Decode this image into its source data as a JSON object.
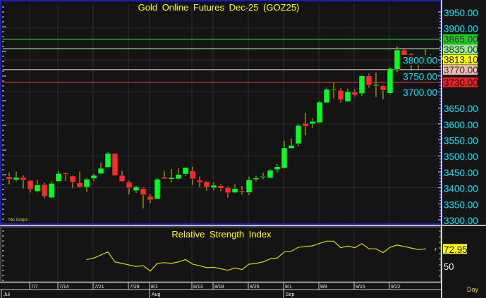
{
  "chart_data": {
    "type": "candlestick",
    "title": "Gold Online Futures Dec-25 (GOZ25)",
    "note": "No Gaps",
    "period_label": "Day",
    "price_axis": {
      "ylim": [
        3300,
        3950
      ],
      "ticks": [
        3300,
        3350,
        3400,
        3450,
        3500,
        3550,
        3600,
        3650,
        3700,
        3750,
        3800,
        3900,
        3950
      ],
      "tick_labels": [
        "3300.00",
        "3350.00",
        "3400.00",
        "3450.00",
        "3500.00",
        "3550.00",
        "3600.00",
        "3650.00",
        "3700.00",
        "3750.00",
        "3800.00",
        "3900.00",
        "3950.00"
      ]
    },
    "grid": true,
    "candles": [
      [
        3435,
        3448,
        3411,
        3426
      ],
      [
        3425,
        3451,
        3420,
        3433
      ],
      [
        3433,
        3439,
        3398,
        3424
      ],
      [
        3423,
        3425,
        3385,
        3395
      ],
      [
        3389,
        3425,
        3385,
        3409
      ],
      [
        3411,
        3415,
        3367,
        3373
      ],
      [
        3369,
        3420,
        3367,
        3414
      ],
      [
        3420,
        3453,
        3420,
        3445
      ],
      [
        3446,
        3448,
        3422,
        3442
      ],
      [
        3437,
        3439,
        3400,
        3417
      ],
      [
        3416,
        3451,
        3400,
        3403
      ],
      [
        3402,
        3431,
        3387,
        3427
      ],
      [
        3429,
        3444,
        3422,
        3439
      ],
      [
        3444,
        3479,
        3444,
        3461
      ],
      [
        3464,
        3512,
        3464,
        3508
      ],
      [
        3508,
        3508,
        3438,
        3438
      ],
      [
        3439,
        3453,
        3418,
        3420
      ],
      [
        3418,
        3422,
        3380,
        3400
      ],
      [
        3391,
        3406,
        3384,
        3403
      ],
      [
        3398,
        3402,
        3336,
        3378
      ],
      [
        3374,
        3380,
        3352,
        3362
      ],
      [
        3365,
        3431,
        3365,
        3427
      ],
      [
        3434,
        3453,
        3428,
        3428
      ],
      [
        3427,
        3459,
        3417,
        3432
      ],
      [
        3428,
        3461,
        3425,
        3442
      ],
      [
        3443,
        3464,
        3437,
        3464
      ],
      [
        3453,
        3466,
        3409,
        3428
      ],
      [
        3424,
        3435,
        3403,
        3417
      ],
      [
        3420,
        3422,
        3391,
        3402
      ],
      [
        3400,
        3417,
        3392,
        3408
      ],
      [
        3407,
        3411,
        3389,
        3398
      ],
      [
        3401,
        3405,
        3369,
        3384
      ],
      [
        3385,
        3411,
        3383,
        3398
      ],
      [
        3391,
        3406,
        3379,
        3387
      ],
      [
        3385,
        3435,
        3378,
        3425
      ],
      [
        3426,
        3438,
        3420,
        3431
      ],
      [
        3433,
        3447,
        3427,
        3436
      ],
      [
        3431,
        3458,
        3430,
        3455
      ],
      [
        3457,
        3475,
        3449,
        3466
      ],
      [
        3462,
        3547,
        3460,
        3525
      ],
      [
        3523,
        3554,
        3523,
        3533
      ],
      [
        3538,
        3600,
        3530,
        3595
      ],
      [
        3602,
        3635,
        3564,
        3592
      ],
      [
        3600,
        3617,
        3587,
        3608
      ],
      [
        3604,
        3672,
        3602,
        3668
      ],
      [
        3666,
        3714,
        3666,
        3708
      ],
      [
        3706,
        3729,
        3680,
        3709
      ],
      [
        3705,
        3712,
        3666,
        3675
      ],
      [
        3670,
        3710,
        3668,
        3701
      ],
      [
        3701,
        3708,
        3686,
        3690
      ],
      [
        3695,
        3754,
        3688,
        3750
      ],
      [
        3750,
        3757,
        3713,
        3721
      ],
      [
        3719,
        3760,
        3684,
        3723
      ],
      [
        3719,
        3723,
        3677,
        3705
      ],
      [
        3696,
        3777,
        3692,
        3773
      ],
      [
        3771,
        3842,
        3761,
        3831
      ],
      [
        3831,
        3837,
        3799,
        3815
      ],
      [
        3818,
        3822,
        3766,
        3807
      ],
      [
        3800,
        3806,
        3771,
        3797
      ],
      [
        3798,
        3833,
        3793,
        3815
      ]
    ],
    "candle_fields": [
      "open",
      "high",
      "low",
      "close"
    ],
    "last_price": {
      "value": 3813.1,
      "label": "3813.10",
      "color": "#ffff00"
    },
    "levels": [
      {
        "value": 3865,
        "label": "3865.00",
        "line_color": "#1fae1f",
        "label_bg": "#22cc22"
      },
      {
        "value": 3835,
        "label": "3835.00",
        "line_color": "#8fbf8f",
        "label_bg": "#9be89b"
      },
      {
        "value": 3770,
        "label": "3770.00",
        "line_color": "#b89090",
        "label_bg": "#f4b8b8"
      },
      {
        "value": 3730,
        "label": "3730.00",
        "line_color": "#b22a2a",
        "label_bg": "#dd2626"
      }
    ],
    "x_ticks": [
      {
        "label": "7/7",
        "index": 3
      },
      {
        "label": "7/14",
        "index": 7
      },
      {
        "label": "7/21",
        "index": 12
      },
      {
        "label": "7/29",
        "index": 17
      },
      {
        "label": "8/1",
        "index": 20
      },
      {
        "label": "8/13",
        "index": 26
      },
      {
        "label": "8/18",
        "index": 29
      },
      {
        "label": "8/25",
        "index": 34
      },
      {
        "label": "9/1",
        "index": 39
      },
      {
        "label": "9/8",
        "index": 44
      },
      {
        "label": "9/15",
        "index": 49
      },
      {
        "label": "9/22",
        "index": 54
      }
    ],
    "months": [
      {
        "label": "Jul",
        "index": -1
      },
      {
        "label": "Aug",
        "index": 20
      },
      {
        "label": "Sep",
        "index": 39
      }
    ],
    "rsi": {
      "title": "Relative Strength Index",
      "ylim": [
        30,
        98
      ],
      "tick_label": "50",
      "tick_value": 50,
      "last_label": "72.95",
      "color": "#d8d800",
      "start_index": 11,
      "values": [
        59,
        61,
        65,
        69,
        56,
        54,
        52,
        50,
        51,
        44,
        54,
        55,
        54,
        56,
        59,
        53,
        51,
        48.5,
        49,
        47,
        45,
        48,
        46,
        53,
        54,
        56,
        60,
        61,
        69,
        70,
        75,
        76,
        77,
        80,
        83,
        83,
        74.5,
        76.6,
        74.5,
        79.7,
        73,
        73,
        68,
        75,
        78,
        76,
        74,
        72,
        72.95
      ]
    },
    "colors": {
      "up": "#00ff22",
      "down": "#ff2a2a",
      "wick": "#d4c400",
      "axis_text": "#00e5ff",
      "title": "#ffff00",
      "background": "#141414",
      "frame": "#1a1ac0"
    }
  }
}
